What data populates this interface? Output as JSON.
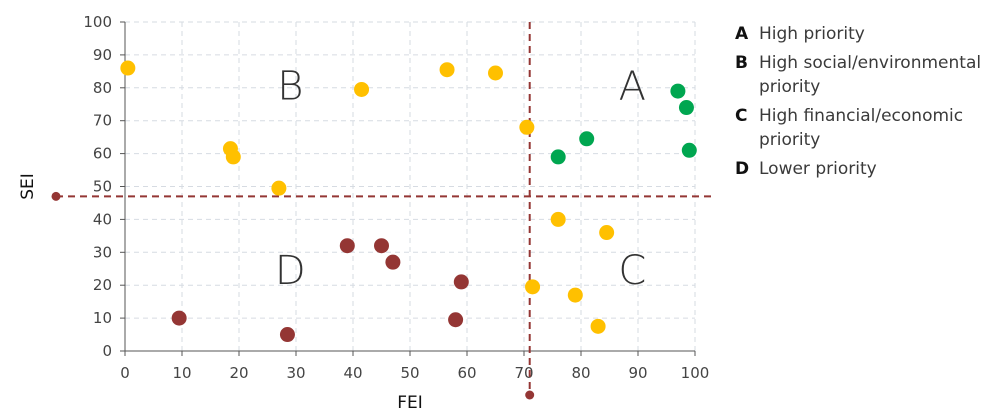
{
  "chart_data": {
    "type": "scatter",
    "xlabel": "FEI",
    "ylabel": "SEI",
    "xlim": [
      0,
      100
    ],
    "ylim": [
      0,
      100
    ],
    "xticks": [
      "0",
      "10",
      "20",
      "30",
      "40",
      "50",
      "60",
      "70",
      "80",
      "90",
      "100"
    ],
    "yticks": [
      "0",
      "10",
      "20",
      "30",
      "40",
      "50",
      "60",
      "70",
      "80",
      "90",
      "100"
    ],
    "grid": true,
    "threshold_x": 71,
    "threshold_y": 47,
    "quadrant_labels": [
      {
        "label": "A",
        "x": 89,
        "y": 81
      },
      {
        "label": "B",
        "x": 29,
        "y": 81
      },
      {
        "label": "C",
        "x": 89,
        "y": 25
      },
      {
        "label": "D",
        "x": 29,
        "y": 25
      }
    ],
    "series": [
      {
        "color": "#00a650",
        "points": [
          [
            97,
            79
          ],
          [
            98.5,
            74
          ],
          [
            99,
            61
          ],
          [
            81,
            64.5
          ],
          [
            76,
            59
          ]
        ]
      },
      {
        "color": "#ffc000",
        "points": [
          [
            0.5,
            86
          ],
          [
            18.5,
            61.5
          ],
          [
            19,
            59
          ],
          [
            27,
            49.5
          ],
          [
            41.5,
            79.5
          ],
          [
            56.5,
            85.5
          ],
          [
            65,
            84.5
          ],
          [
            70.5,
            68
          ],
          [
            76,
            40
          ],
          [
            84.5,
            36
          ],
          [
            71.5,
            19.5
          ],
          [
            79,
            17
          ],
          [
            83,
            7.5
          ]
        ]
      },
      {
        "color": "#943634",
        "points": [
          [
            9.5,
            10
          ],
          [
            28.5,
            5
          ],
          [
            39,
            32
          ],
          [
            45,
            32
          ],
          [
            47,
            27
          ],
          [
            59,
            21
          ],
          [
            58,
            9.5
          ]
        ]
      }
    ]
  },
  "legend": [
    {
      "key": "A",
      "text": "High priority"
    },
    {
      "key": "B",
      "text": "High social/environmental priority"
    },
    {
      "key": "C",
      "text": "High financial/economic priority"
    },
    {
      "key": "D",
      "text": "Lower priority"
    }
  ]
}
